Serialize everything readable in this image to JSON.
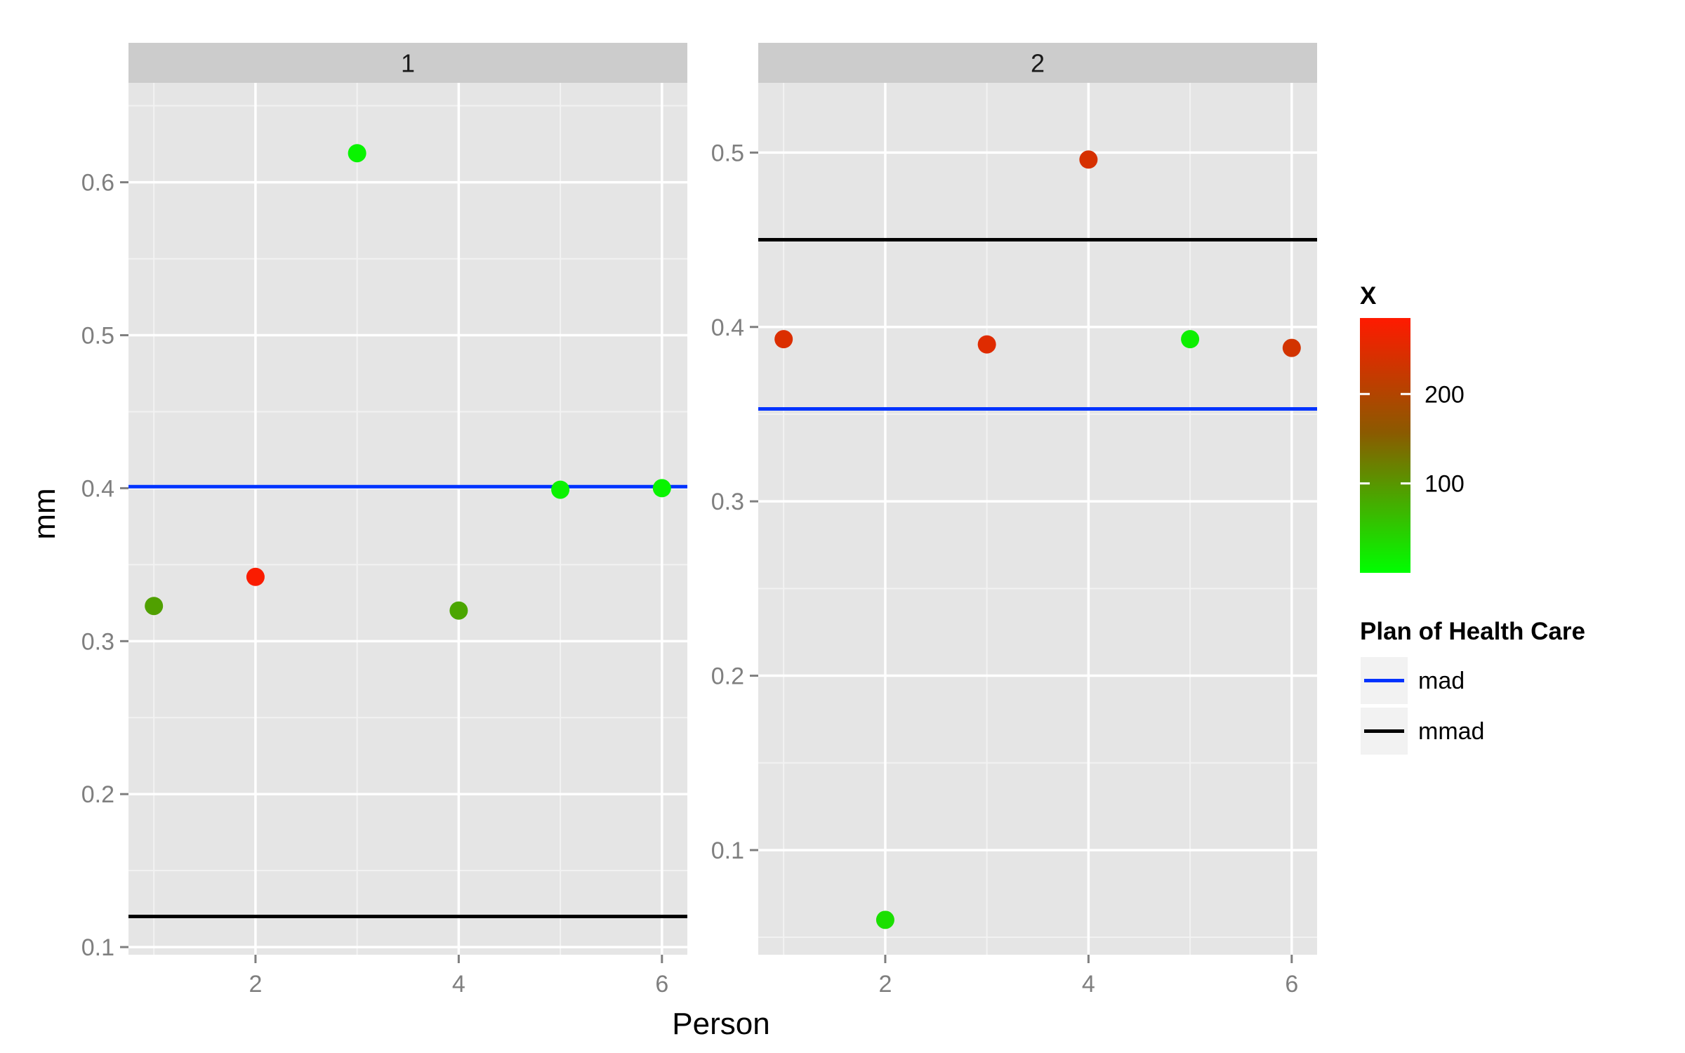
{
  "chart_data": {
    "type": "scatter",
    "xlabel": "Person",
    "ylabel": "mm",
    "grid": true,
    "legend_position": "right",
    "panels": [
      {
        "strip": "1",
        "xlim": [
          0.75,
          6.25
        ],
        "ylim": [
          0.095,
          0.665
        ],
        "x_ticks": [
          2,
          4,
          6
        ],
        "y_ticks": [
          0.1,
          0.2,
          0.3,
          0.4,
          0.5,
          0.6
        ],
        "y_tick_labels": [
          "0.1",
          "0.2",
          "0.3",
          "0.4",
          "0.5",
          "0.6"
        ],
        "points": [
          {
            "x": 1,
            "y": 0.323,
            "color_value": 90
          },
          {
            "x": 2,
            "y": 0.342,
            "color_value": 280
          },
          {
            "x": 3,
            "y": 0.619,
            "color_value": 10
          },
          {
            "x": 4,
            "y": 0.32,
            "color_value": 85
          },
          {
            "x": 5,
            "y": 0.399,
            "color_value": 12
          },
          {
            "x": 6,
            "y": 0.4,
            "color_value": 10
          }
        ],
        "hlines": [
          {
            "series": "mad",
            "y": 0.401
          },
          {
            "series": "mmad",
            "y": 0.12
          }
        ]
      },
      {
        "strip": "2",
        "xlim": [
          0.75,
          6.25
        ],
        "ylim": [
          0.04,
          0.54
        ],
        "x_ticks": [
          2,
          4,
          6
        ],
        "y_ticks": [
          0.1,
          0.2,
          0.3,
          0.4,
          0.5
        ],
        "y_tick_labels": [
          "0.1",
          "0.2",
          "0.3",
          "0.4",
          "0.5"
        ],
        "points": [
          {
            "x": 1,
            "y": 0.393,
            "color_value": 245
          },
          {
            "x": 2,
            "y": 0.06,
            "color_value": 30
          },
          {
            "x": 3,
            "y": 0.39,
            "color_value": 250
          },
          {
            "x": 4,
            "y": 0.496,
            "color_value": 240
          },
          {
            "x": 5,
            "y": 0.393,
            "color_value": 15
          },
          {
            "x": 6,
            "y": 0.388,
            "color_value": 235
          }
        ],
        "hlines": [
          {
            "series": "mad",
            "y": 0.353
          },
          {
            "series": "mmad",
            "y": 0.45
          }
        ]
      }
    ],
    "color_scale": {
      "title": "X",
      "min": 0,
      "max": 285,
      "low_color": "#00ff00",
      "mid_color": "#8b5a00",
      "high_color": "#ff1a00",
      "breaks": [
        100,
        200
      ],
      "break_labels": [
        "100",
        "200"
      ]
    },
    "line_legend": {
      "title": "Plan of Health Care",
      "entries": [
        {
          "key": "mad",
          "label": "mad",
          "color": "#0033ff"
        },
        {
          "key": "mmad",
          "label": "mmad",
          "color": "#000000"
        }
      ]
    }
  }
}
